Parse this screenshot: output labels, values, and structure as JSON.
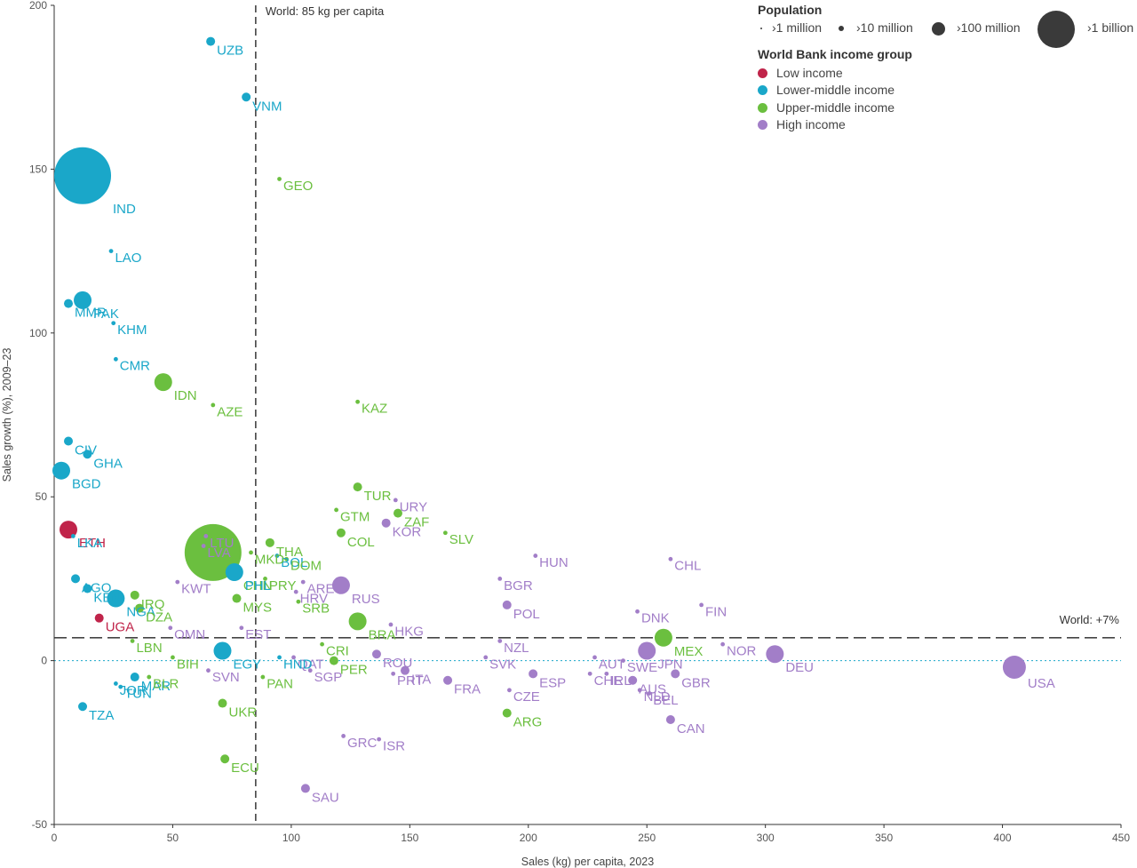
{
  "colors": {
    "low_income": "#c0244a",
    "lower_middle_income": "#1aa7c9",
    "upper_middle_income": "#6bbf3f",
    "high_income": "#a27ec8",
    "axis": "#333333",
    "reference_line": "#444444"
  },
  "legend": {
    "population_title": "Population",
    "population_items": [
      "›1 million",
      "›10 million",
      "›100 million",
      "›1 billion"
    ],
    "income_title": "World Bank income group",
    "income_items": [
      "Low income",
      "Lower-middle income",
      "Upper-middle income",
      "High income"
    ]
  },
  "chart_data": {
    "type": "scatter",
    "xlabel": "Sales (kg) per capita, 2023",
    "ylabel": "Sales growth (%), 2009–23",
    "xlim": [
      0,
      450
    ],
    "ylim": [
      -50,
      200
    ],
    "x_ticks": [
      0,
      50,
      100,
      150,
      200,
      250,
      300,
      350,
      400,
      450
    ],
    "y_ticks": [
      -50,
      0,
      50,
      100,
      150,
      200
    ],
    "reference_lines": {
      "vertical": {
        "x": 85,
        "label": "World: 85 kg per capita"
      },
      "horizontal": {
        "y": 7,
        "label": "World: +7%"
      }
    },
    "points": [
      {
        "code": "UZB",
        "x": 66,
        "y": 189,
        "group": "lower_middle_income",
        "size": "10m"
      },
      {
        "code": "VNM",
        "x": 81,
        "y": 172,
        "group": "lower_middle_income",
        "size": "10m"
      },
      {
        "code": "IND",
        "x": 12,
        "y": 148,
        "group": "lower_middle_income",
        "size": "1b"
      },
      {
        "code": "GEO",
        "x": 95,
        "y": 147,
        "group": "upper_middle_income",
        "size": "1m"
      },
      {
        "code": "LAO",
        "x": 24,
        "y": 125,
        "group": "lower_middle_income",
        "size": "1m"
      },
      {
        "code": "PAK",
        "x": 12,
        "y": 110,
        "group": "lower_middle_income",
        "size": "100m"
      },
      {
        "code": "MMR",
        "x": 6,
        "y": 109,
        "group": "lower_middle_income",
        "size": "10m"
      },
      {
        "code": "KHM",
        "x": 25,
        "y": 103,
        "group": "lower_middle_income",
        "size": "1m"
      },
      {
        "code": "CMR",
        "x": 26,
        "y": 92,
        "group": "lower_middle_income",
        "size": "1m"
      },
      {
        "code": "IDN",
        "x": 46,
        "y": 85,
        "group": "upper_middle_income",
        "size": "100m"
      },
      {
        "code": "KAZ",
        "x": 128,
        "y": 79,
        "group": "upper_middle_income",
        "size": "1m"
      },
      {
        "code": "AZE",
        "x": 67,
        "y": 78,
        "group": "upper_middle_income",
        "size": "1m"
      },
      {
        "code": "CIV",
        "x": 6,
        "y": 67,
        "group": "lower_middle_income",
        "size": "10m"
      },
      {
        "code": "GHA",
        "x": 14,
        "y": 63,
        "group": "lower_middle_income",
        "size": "10m"
      },
      {
        "code": "BGD",
        "x": 3,
        "y": 58,
        "group": "lower_middle_income",
        "size": "100m"
      },
      {
        "code": "TUR",
        "x": 128,
        "y": 53,
        "group": "upper_middle_income",
        "size": "10m"
      },
      {
        "code": "URY",
        "x": 144,
        "y": 49,
        "group": "high_income",
        "size": "1m"
      },
      {
        "code": "GTM",
        "x": 119,
        "y": 46,
        "group": "upper_middle_income",
        "size": "1m"
      },
      {
        "code": "ZAF",
        "x": 145,
        "y": 45,
        "group": "upper_middle_income",
        "size": "10m"
      },
      {
        "code": "KOR",
        "x": 140,
        "y": 42,
        "group": "high_income",
        "size": "10m"
      },
      {
        "code": "COL",
        "x": 121,
        "y": 39,
        "group": "upper_middle_income",
        "size": "10m"
      },
      {
        "code": "ETH",
        "x": 6,
        "y": 40,
        "group": "low_income",
        "size": "100m"
      },
      {
        "code": "LKA",
        "x": 8,
        "y": 38,
        "group": "lower_middle_income",
        "size": "1m"
      },
      {
        "code": "SLV",
        "x": 165,
        "y": 39,
        "group": "upper_middle_income",
        "size": "1m"
      },
      {
        "code": "CHN",
        "x": 67,
        "y": 33,
        "group": "upper_middle_income",
        "size": "1b"
      },
      {
        "code": "LTU",
        "x": 64,
        "y": 38,
        "group": "high_income",
        "size": "1m"
      },
      {
        "code": "THA",
        "x": 91,
        "y": 36,
        "group": "upper_middle_income",
        "size": "10m"
      },
      {
        "code": "BOL",
        "x": 94,
        "y": 32,
        "group": "lower_middle_income",
        "size": "1m"
      },
      {
        "code": "DOM",
        "x": 98,
        "y": 31,
        "group": "upper_middle_income",
        "size": "1m"
      },
      {
        "code": "LVA",
        "x": 63,
        "y": 35,
        "group": "high_income",
        "size": "1m"
      },
      {
        "code": "MKD",
        "x": 83,
        "y": 33,
        "group": "upper_middle_income",
        "size": "1m"
      },
      {
        "code": "CHL",
        "x": 260,
        "y": 31,
        "group": "high_income",
        "size": "1m"
      },
      {
        "code": "HUN",
        "x": 203,
        "y": 32,
        "group": "high_income",
        "size": "1m"
      },
      {
        "code": "AGO",
        "x": 9,
        "y": 25,
        "group": "lower_middle_income",
        "size": "10m"
      },
      {
        "code": "KEN",
        "x": 14,
        "y": 22,
        "group": "lower_middle_income",
        "size": "10m"
      },
      {
        "code": "ARE",
        "x": 105,
        "y": 24,
        "group": "high_income",
        "size": "1m"
      },
      {
        "code": "PHL",
        "x": 76,
        "y": 27,
        "group": "lower_middle_income",
        "size": "100m"
      },
      {
        "code": "IRQ",
        "x": 34,
        "y": 20,
        "group": "upper_middle_income",
        "size": "10m"
      },
      {
        "code": "KWT",
        "x": 52,
        "y": 24,
        "group": "high_income",
        "size": "1m"
      },
      {
        "code": "PRY",
        "x": 89,
        "y": 25,
        "group": "upper_middle_income",
        "size": "1m"
      },
      {
        "code": "RUS",
        "x": 121,
        "y": 23,
        "group": "high_income",
        "size": "100m"
      },
      {
        "code": "HRV",
        "x": 102,
        "y": 21,
        "group": "high_income",
        "size": "1m"
      },
      {
        "code": "BGR",
        "x": 188,
        "y": 25,
        "group": "high_income",
        "size": "1m"
      },
      {
        "code": "NGA",
        "x": 26,
        "y": 19,
        "group": "lower_middle_income",
        "size": "100m"
      },
      {
        "code": "MYS",
        "x": 77,
        "y": 19,
        "group": "upper_middle_income",
        "size": "10m"
      },
      {
        "code": "SRB",
        "x": 103,
        "y": 18,
        "group": "upper_middle_income",
        "size": "1m"
      },
      {
        "code": "POL",
        "x": 191,
        "y": 17,
        "group": "high_income",
        "size": "10m"
      },
      {
        "code": "DNK",
        "x": 246,
        "y": 15,
        "group": "high_income",
        "size": "1m"
      },
      {
        "code": "FIN",
        "x": 273,
        "y": 17,
        "group": "high_income",
        "size": "1m"
      },
      {
        "code": "DZA",
        "x": 36,
        "y": 16,
        "group": "upper_middle_income",
        "size": "10m"
      },
      {
        "code": "UGA",
        "x": 19,
        "y": 13,
        "group": "low_income",
        "size": "10m"
      },
      {
        "code": "BRA",
        "x": 128,
        "y": 12,
        "group": "upper_middle_income",
        "size": "100m"
      },
      {
        "code": "HKG",
        "x": 142,
        "y": 11,
        "group": "high_income",
        "size": "1m"
      },
      {
        "code": "LBN",
        "x": 33,
        "y": 6,
        "group": "upper_middle_income",
        "size": "1m"
      },
      {
        "code": "EST",
        "x": 79,
        "y": 10,
        "group": "high_income",
        "size": "1m"
      },
      {
        "code": "OMN",
        "x": 49,
        "y": 10,
        "group": "high_income",
        "size": "1m"
      },
      {
        "code": "NZL",
        "x": 188,
        "y": 6,
        "group": "high_income",
        "size": "1m"
      },
      {
        "code": "MEX",
        "x": 257,
        "y": 7,
        "group": "upper_middle_income",
        "size": "100m"
      },
      {
        "code": "NOR",
        "x": 282,
        "y": 5,
        "group": "high_income",
        "size": "1m"
      },
      {
        "code": "EGY",
        "x": 71,
        "y": 3,
        "group": "lower_middle_income",
        "size": "100m"
      },
      {
        "code": "CRI",
        "x": 113,
        "y": 5,
        "group": "upper_middle_income",
        "size": "1m"
      },
      {
        "code": "ROU",
        "x": 136,
        "y": 2,
        "group": "high_income",
        "size": "10m"
      },
      {
        "code": "QAT",
        "x": 101,
        "y": 1,
        "group": "high_income",
        "size": "1m"
      },
      {
        "code": "AUT",
        "x": 228,
        "y": 1,
        "group": "high_income",
        "size": "1m"
      },
      {
        "code": "SWE",
        "x": 240,
        "y": 0,
        "group": "high_income",
        "size": "1m"
      },
      {
        "code": "JPN",
        "x": 250,
        "y": 3,
        "group": "high_income",
        "size": "100m"
      },
      {
        "code": "DEU",
        "x": 304,
        "y": 2,
        "group": "high_income",
        "size": "100m"
      },
      {
        "code": "PER",
        "x": 118,
        "y": 0,
        "group": "upper_middle_income",
        "size": "10m"
      },
      {
        "code": "HND",
        "x": 95,
        "y": 1,
        "group": "lower_middle_income",
        "size": "1m"
      },
      {
        "code": "BIH",
        "x": 50,
        "y": 1,
        "group": "upper_middle_income",
        "size": "1m"
      },
      {
        "code": "MAR",
        "x": 34,
        "y": -5,
        "group": "lower_middle_income",
        "size": "10m"
      },
      {
        "code": "ITA",
        "x": 148,
        "y": -3,
        "group": "high_income",
        "size": "10m"
      },
      {
        "code": "SGP",
        "x": 108,
        "y": -3,
        "group": "high_income",
        "size": "1m"
      },
      {
        "code": "SVN",
        "x": 65,
        "y": -3,
        "group": "high_income",
        "size": "1m"
      },
      {
        "code": "PAN",
        "x": 88,
        "y": -5,
        "group": "upper_middle_income",
        "size": "1m"
      },
      {
        "code": "ESP",
        "x": 202,
        "y": -4,
        "group": "high_income",
        "size": "10m"
      },
      {
        "code": "CHE",
        "x": 226,
        "y": -4,
        "group": "high_income",
        "size": "1m"
      },
      {
        "code": "IRL",
        "x": 233,
        "y": -4,
        "group": "high_income",
        "size": "1m"
      },
      {
        "code": "AUS",
        "x": 244,
        "y": -6,
        "group": "high_income",
        "size": "10m"
      },
      {
        "code": "GBR",
        "x": 262,
        "y": -4,
        "group": "high_income",
        "size": "10m"
      },
      {
        "code": "USA",
        "x": 405,
        "y": -2,
        "group": "high_income",
        "size": "100m_large"
      },
      {
        "code": "JOR",
        "x": 26,
        "y": -7,
        "group": "lower_middle_income",
        "size": "1m"
      },
      {
        "code": "BLR",
        "x": 40,
        "y": -5,
        "group": "upper_middle_income",
        "size": "1m"
      },
      {
        "code": "PRT",
        "x": 143,
        "y": -4,
        "group": "high_income",
        "size": "1m"
      },
      {
        "code": "SVK",
        "x": 182,
        "y": 1,
        "group": "high_income",
        "size": "1m"
      },
      {
        "code": "FRA",
        "x": 166,
        "y": -6,
        "group": "high_income",
        "size": "10m"
      },
      {
        "code": "NLD",
        "x": 247,
        "y": -9,
        "group": "high_income",
        "size": "1m"
      },
      {
        "code": "BEL",
        "x": 251,
        "y": -10,
        "group": "high_income",
        "size": "1m"
      },
      {
        "code": "TUN",
        "x": 28,
        "y": -8,
        "group": "lower_middle_income",
        "size": "1m"
      },
      {
        "code": "CZE",
        "x": 192,
        "y": -9,
        "group": "high_income",
        "size": "1m"
      },
      {
        "code": "TZA",
        "x": 12,
        "y": -14,
        "group": "lower_middle_income",
        "size": "10m"
      },
      {
        "code": "UKR",
        "x": 71,
        "y": -13,
        "group": "upper_middle_income",
        "size": "10m"
      },
      {
        "code": "ARG",
        "x": 191,
        "y": -16,
        "group": "upper_middle_income",
        "size": "10m"
      },
      {
        "code": "CAN",
        "x": 260,
        "y": -18,
        "group": "high_income",
        "size": "10m"
      },
      {
        "code": "ISR",
        "x": 137,
        "y": -24,
        "group": "high_income",
        "size": "1m"
      },
      {
        "code": "GRC",
        "x": 122,
        "y": -23,
        "group": "high_income",
        "size": "1m"
      },
      {
        "code": "ECU",
        "x": 72,
        "y": -30,
        "group": "upper_middle_income",
        "size": "10m"
      },
      {
        "code": "SAU",
        "x": 106,
        "y": -39,
        "group": "high_income",
        "size": "10m"
      }
    ]
  }
}
